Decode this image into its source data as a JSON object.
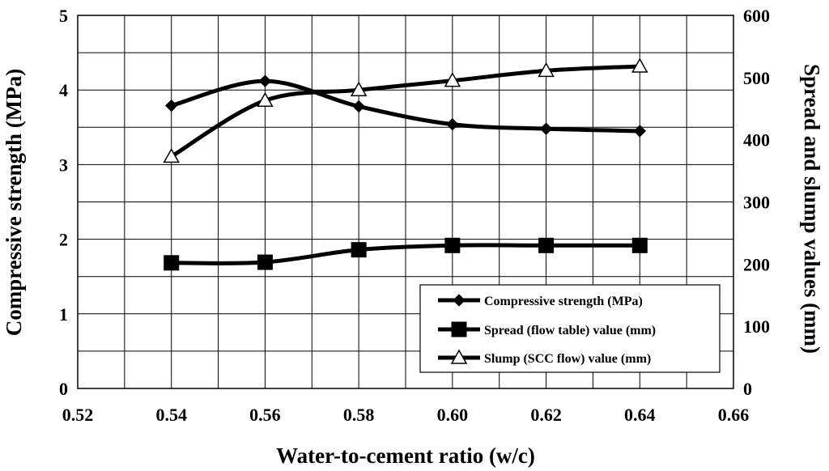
{
  "chart_data": {
    "type": "line",
    "xlabel": "Water-to-cement ratio (w/c)",
    "ylabel_left": "Compressive strength (MPa)",
    "ylabel_right": "Spread and slump values (mm)",
    "xlim": [
      0.52,
      0.66
    ],
    "ylim_left": [
      0,
      5
    ],
    "ylim_right": [
      0,
      600
    ],
    "x_ticks": [
      "0.52",
      "0.54",
      "0.56",
      "0.58",
      "0.60",
      "0.62",
      "0.64",
      "0.66"
    ],
    "y_left_ticks": [
      "0",
      "1",
      "2",
      "3",
      "4",
      "5"
    ],
    "y_right_ticks": [
      "0",
      "100",
      "200",
      "300",
      "400",
      "500",
      "600"
    ],
    "grid": true,
    "legend_position": "bottom-right",
    "x": [
      0.54,
      0.56,
      0.58,
      0.6,
      0.62,
      0.64
    ],
    "series": [
      {
        "name": "Compressive strength (MPa)",
        "axis": "left",
        "marker": "diamond",
        "values": [
          3.79,
          4.12,
          3.78,
          3.54,
          3.48,
          3.45
        ]
      },
      {
        "name": "Spread (flow table) value (mm)",
        "axis": "right",
        "marker": "square",
        "values": [
          202,
          203,
          223,
          230,
          230,
          230
        ]
      },
      {
        "name": "Slump (SCC flow) value (mm)",
        "axis": "right",
        "marker": "triangle",
        "values": [
          373,
          463,
          480,
          495,
          511,
          518
        ]
      }
    ]
  }
}
